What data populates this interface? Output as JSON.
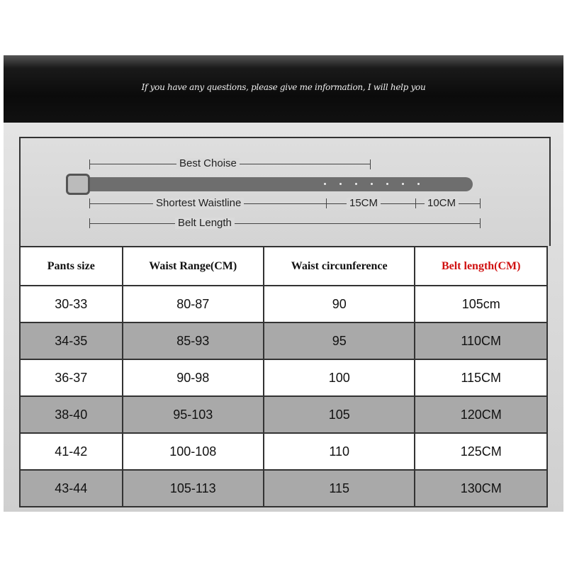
{
  "banner": {
    "text": "If you have any questions, please give me information, I will help you"
  },
  "diagram": {
    "best_choice": "Best Choise",
    "shortest_waistline": "Shortest Waistline",
    "segment1": "15CM",
    "segment2": "10CM",
    "belt_length": "Belt Length"
  },
  "table": {
    "headers": [
      "Pants size",
      "Waist Range(CM)",
      "Waist circunference",
      "Belt length(CM)"
    ],
    "highlight_header_color": "#d01010",
    "rows": [
      [
        "30-33",
        "80-87",
        "90",
        "105cm"
      ],
      [
        "34-35",
        "85-93",
        "95",
        "110CM"
      ],
      [
        "36-37",
        "90-98",
        "100",
        "115CM"
      ],
      [
        "38-40",
        "95-103",
        "105",
        "120CM"
      ],
      [
        "41-42",
        "100-108",
        "110",
        "125CM"
      ],
      [
        "43-44",
        "105-113",
        "115",
        "130CM"
      ]
    ]
  }
}
